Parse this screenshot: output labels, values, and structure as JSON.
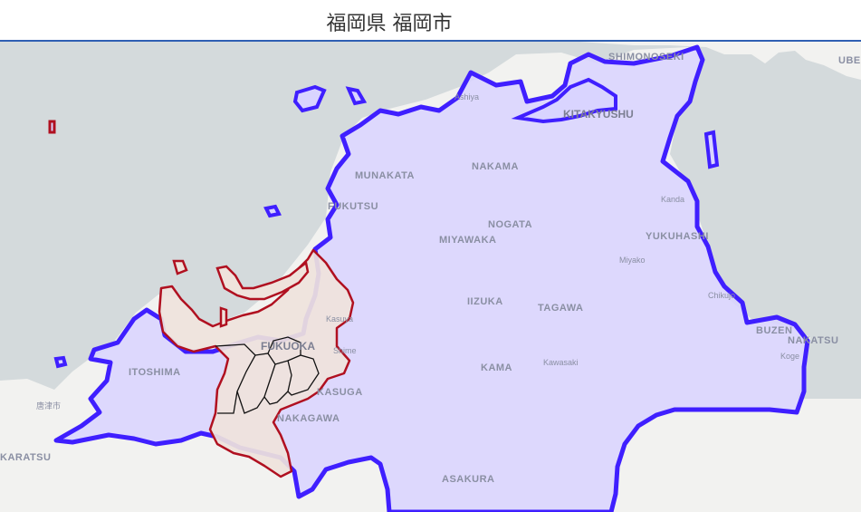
{
  "title": "福岡県 福岡市",
  "colors": {
    "sea": "#d4dadc",
    "land": "#f2f2f0",
    "prefecture_fill": "#d9d4ff",
    "prefecture_stroke": "#3f1fff",
    "city_fill": "#efe3dc",
    "city_stroke": "#b01020",
    "ward_stroke": "#111111"
  },
  "labels": {
    "shimonoseki": "SHIMONOSEKI",
    "ube": "UBE",
    "kitakyushu": "KITAKYUSHU",
    "ashiya": "Ashiya",
    "munakata": "MUNAKATA",
    "nakama": "NAKAMA",
    "kanda": "Kanda",
    "fukutsu": "FUKUTSU",
    "nogata": "NOGATA",
    "miyawaka": "MIYAWAKA",
    "yukuhashi": "YUKUHASHI",
    "miyako": "Miyako",
    "iizuka": "IIZUKA",
    "tagawa": "TAGAWA",
    "chikujo": "Chikujo",
    "kasuya": "Kasuya",
    "fukuoka": "FUKUOKA",
    "shime": "Shime",
    "buzen": "BUZEN",
    "nakatsu": "NAKATSU",
    "koge": "Koge",
    "itoshima": "ITOSHIMA",
    "kama": "KAMA",
    "kawasaki": "Kawasaki",
    "karatsu": "唐津市",
    "kasuga": "KASUGA",
    "nakagawa": "NAKAGAWA",
    "karatsu_city": "KARATSU",
    "asakura": "ASAKURA"
  }
}
